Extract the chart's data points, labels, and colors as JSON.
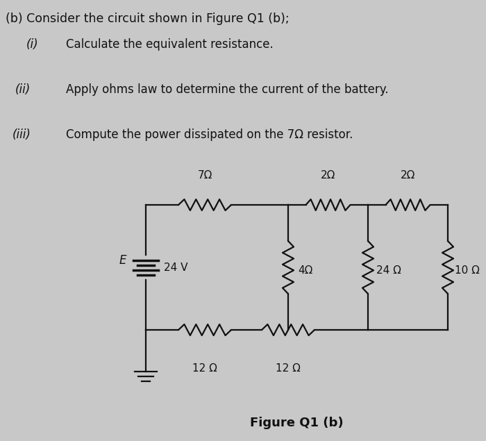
{
  "bg_color": "#c8c8c8",
  "text_color": "#111111",
  "line_color": "#111111",
  "title_line1": "(b) Consider the circuit shown in Figure Q1 (b);",
  "item_i_num": "(i)",
  "item_i_text": "Calculate the equivalent resistance.",
  "item_ii_num": "(ii)",
  "item_ii_text": "Apply ohms law to determine the current of the battery.",
  "item_iii_num": "(iii)",
  "item_iii_text": "Compute the power dissipated on the 7Ω resistor.",
  "fig_label": "Figure Q1 (b)",
  "R7": "7Ω",
  "R2a": "2Ω",
  "R2b": "2Ω",
  "R4": "4Ω",
  "R24": "24 Ω",
  "R10": "10 Ω",
  "R12a": "12 Ω",
  "R12b": "12 Ω",
  "battery_label": "24 V",
  "E_label": "E"
}
